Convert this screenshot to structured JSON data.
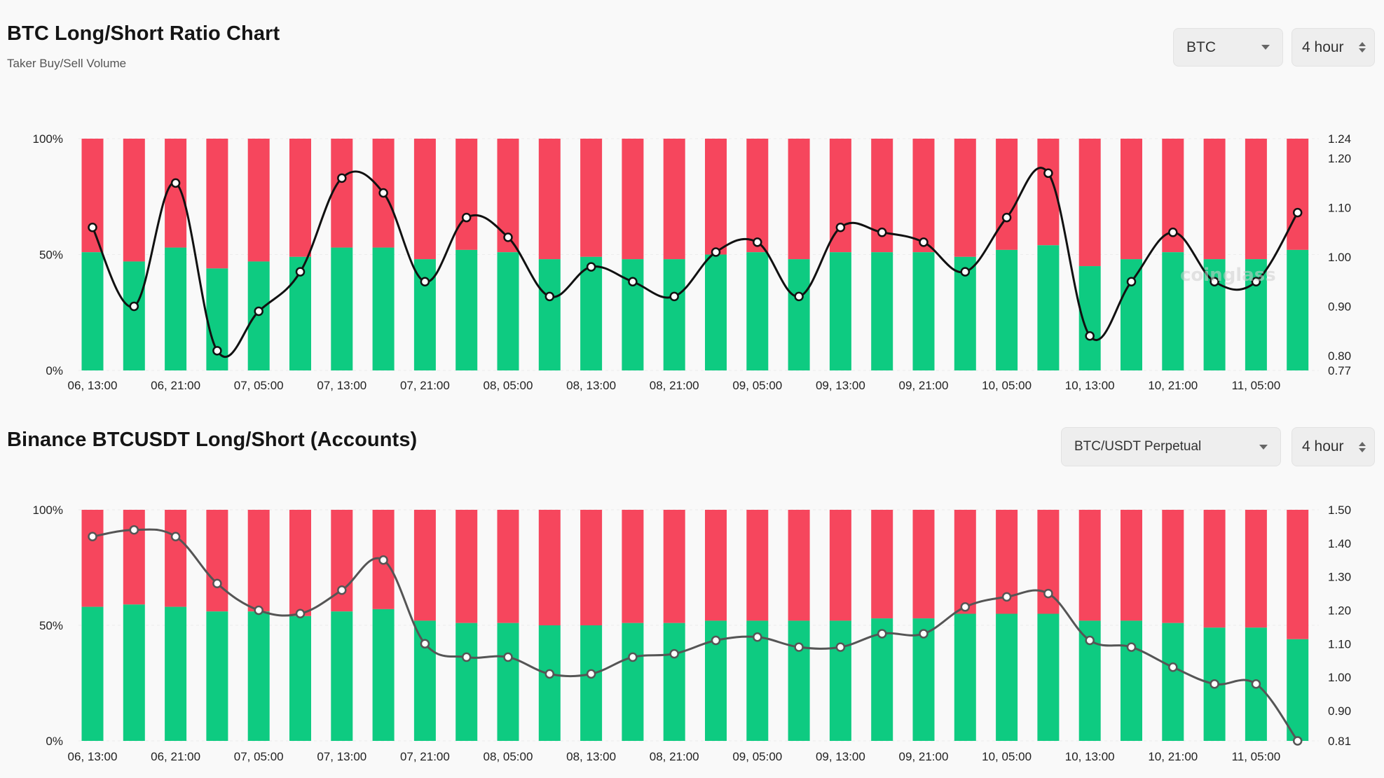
{
  "chart1": {
    "title": "BTC Long/Short Ratio Chart",
    "subtitle": "Taker Buy/Sell Volume",
    "symbol_select": "BTC",
    "interval_select": "4 hour",
    "watermark": "coinglass"
  },
  "chart2": {
    "title": "Binance BTCUSDT Long/Short (Accounts)",
    "symbol_select": "BTC/USDT Perpetual",
    "interval_select": "4 hour"
  },
  "colors": {
    "long": "#0ecb81",
    "short": "#f6465d",
    "line1": "#111111",
    "line2": "#555555"
  },
  "chart_data": [
    {
      "type": "bar",
      "stacked": true,
      "x_labels": [
        "06, 13:00",
        "06, 21:00",
        "07, 05:00",
        "07, 13:00",
        "07, 21:00",
        "08, 05:00",
        "08, 13:00",
        "08, 21:00",
        "09, 05:00",
        "09, 13:00",
        "09, 21:00",
        "10, 05:00",
        "10, 13:00",
        "10, 21:00",
        "11, 05:00"
      ],
      "y_left_ticks": [
        "0%",
        "50%",
        "100%"
      ],
      "y_left_range": [
        0,
        100
      ],
      "y_right_ticks": [
        "0.77",
        "0.80",
        "0.90",
        "1.00",
        "1.10",
        "1.20",
        "1.24"
      ],
      "y_right_range": [
        0.77,
        1.24
      ],
      "long_pct": [
        51,
        47,
        53,
        44,
        47,
        49,
        53,
        53,
        48,
        52,
        51,
        48,
        49,
        48,
        48,
        50,
        51,
        48,
        51,
        51,
        51,
        49,
        52,
        54,
        45,
        48,
        51,
        48,
        48,
        52
      ],
      "ratio": [
        1.06,
        0.9,
        1.15,
        0.81,
        0.89,
        0.97,
        1.16,
        1.13,
        0.95,
        1.08,
        1.04,
        0.92,
        0.98,
        0.95,
        0.92,
        1.01,
        1.03,
        0.92,
        1.06,
        1.05,
        1.03,
        0.97,
        1.08,
        1.17,
        0.84,
        0.95,
        1.05,
        0.95,
        0.95,
        1.09
      ],
      "grid": true
    },
    {
      "type": "bar",
      "stacked": true,
      "x_labels": [
        "06, 13:00",
        "06, 21:00",
        "07, 05:00",
        "07, 13:00",
        "07, 21:00",
        "08, 05:00",
        "08, 13:00",
        "08, 21:00",
        "09, 05:00",
        "09, 13:00",
        "09, 21:00",
        "10, 05:00",
        "10, 13:00",
        "10, 21:00",
        "11, 05:00"
      ],
      "y_left_ticks": [
        "0%",
        "50%",
        "100%"
      ],
      "y_left_range": [
        0,
        100
      ],
      "y_right_ticks": [
        "0.81",
        "0.90",
        "1.00",
        "1.10",
        "1.20",
        "1.30",
        "1.40",
        "1.50"
      ],
      "y_right_range": [
        0.81,
        1.5
      ],
      "long_pct": [
        58,
        59,
        58,
        56,
        56,
        54,
        56,
        57,
        52,
        51,
        51,
        50,
        50,
        51,
        51,
        52,
        52,
        52,
        52,
        53,
        53,
        55,
        55,
        55,
        52,
        52,
        51,
        49,
        49,
        44
      ],
      "ratio": [
        1.42,
        1.44,
        1.42,
        1.28,
        1.2,
        1.19,
        1.26,
        1.35,
        1.1,
        1.06,
        1.06,
        1.01,
        1.01,
        1.06,
        1.07,
        1.11,
        1.12,
        1.09,
        1.09,
        1.13,
        1.13,
        1.21,
        1.24,
        1.25,
        1.11,
        1.09,
        1.03,
        0.98,
        0.98,
        0.81
      ],
      "grid": true
    }
  ]
}
